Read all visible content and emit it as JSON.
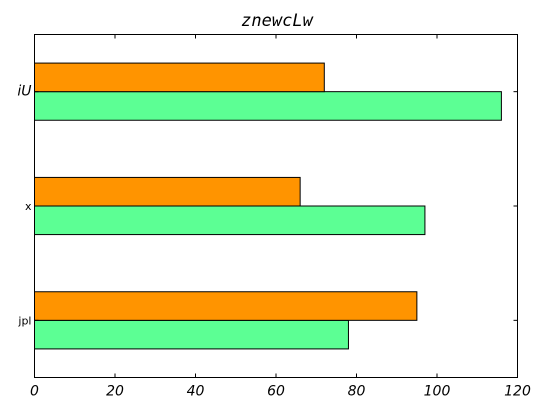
{
  "chart_data": {
    "type": "bar",
    "orientation": "horizontal",
    "title": "znewcLw",
    "xlabel": "",
    "ylabel": "",
    "categories": [
      "jpl",
      "x",
      "iU"
    ],
    "series": [
      {
        "values": [
          78,
          97,
          116
        ],
        "color": "#5cff94"
      },
      {
        "values": [
          95,
          66,
          72
        ],
        "color": "#ff9400"
      }
    ],
    "xlim": [
      0,
      120
    ],
    "xticks": [
      0,
      20,
      40,
      60,
      80,
      100,
      120
    ],
    "grid": false,
    "legend": "none"
  }
}
